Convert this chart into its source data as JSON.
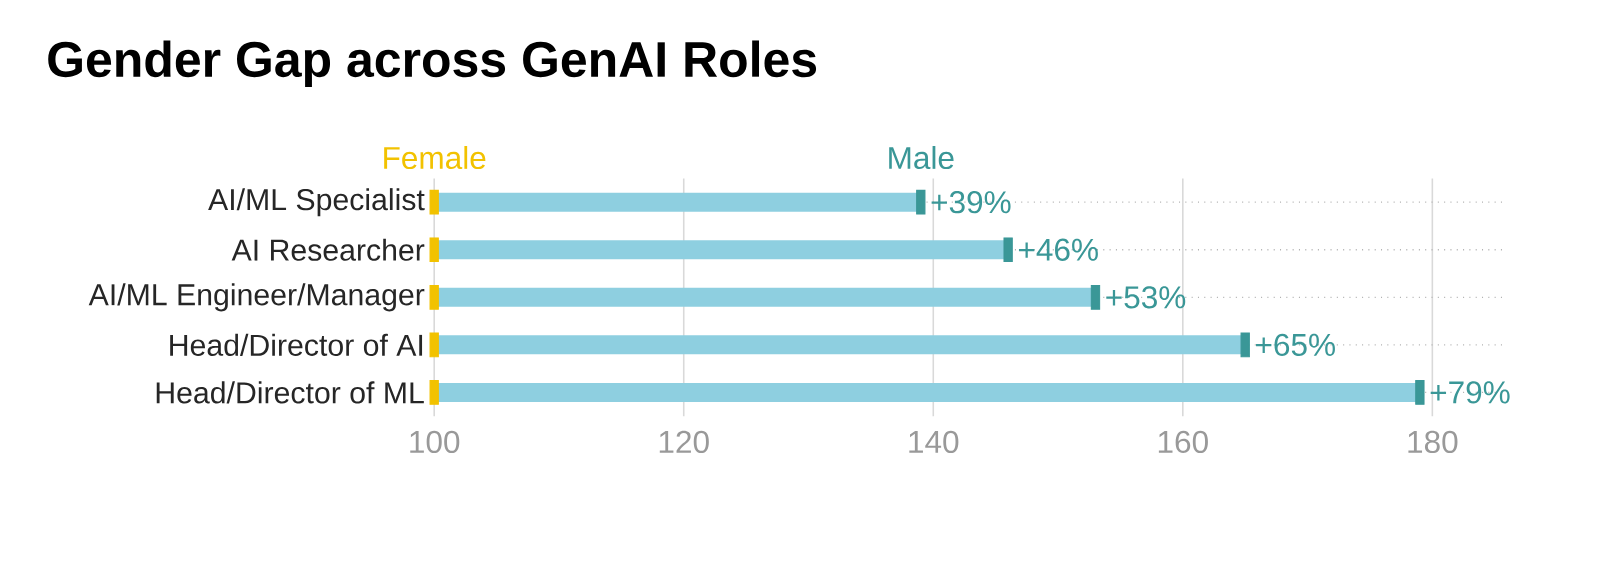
{
  "chart_data": {
    "type": "bar",
    "title": "Gender Gap across GenAI Roles",
    "orientation": "horizontal",
    "categories": [
      "AI/ML Specialist",
      "AI Researcher",
      "AI/ML Engineer/Manager",
      "Head/Director of AI",
      "Head/Director of ML"
    ],
    "series": [
      {
        "type": "bar",
        "color": "#8ecfe0",
        "base": [
          100,
          100,
          100,
          100,
          100
        ],
        "values": [
          39,
          46,
          53,
          65,
          79
        ],
        "value_labels": [
          "+39%",
          "+46%",
          "+53%",
          "+65%",
          "+79%"
        ]
      },
      {
        "type": "scatter",
        "name": "Female",
        "color": "#f2c200",
        "values": [
          100,
          100,
          100,
          100,
          100
        ]
      },
      {
        "type": "scatter",
        "name": "Male",
        "color": "#3a9797",
        "values": [
          139,
          146,
          153,
          165,
          179
        ]
      }
    ],
    "marker": "square",
    "xlim": [
      100,
      186
    ],
    "xticks": [
      100,
      120,
      140,
      160,
      180
    ],
    "grid": true
  }
}
